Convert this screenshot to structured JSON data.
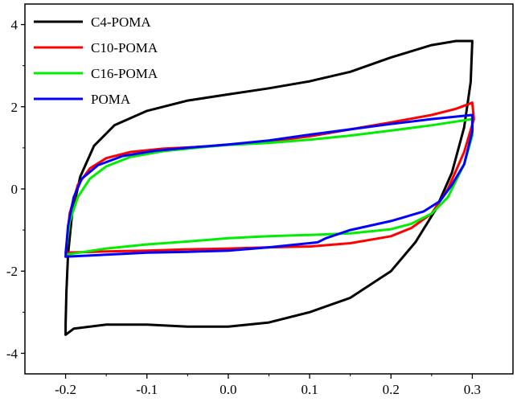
{
  "chart_data": {
    "type": "line",
    "title": "",
    "xlabel": "",
    "ylabel": "",
    "xlim": [
      -0.25,
      0.35
    ],
    "ylim": [
      -4.5,
      4.5
    ],
    "xticks": [
      -0.2,
      -0.1,
      0.0,
      0.1,
      0.2,
      0.3
    ],
    "xtick_labels": [
      "-0.2",
      "-0.1",
      "0.0",
      "0.1",
      "0.2",
      "0.3"
    ],
    "yticks": [
      -4,
      -2,
      0,
      2,
      4
    ],
    "ytick_labels": [
      "-4",
      "-2",
      "0",
      "2",
      "4"
    ],
    "legend_position": "top-left",
    "grid": false,
    "series": [
      {
        "name": "C4-POMA",
        "color": "#000000",
        "points": [
          [
            -0.2,
            -3.55
          ],
          [
            -0.2,
            -3.3
          ],
          [
            -0.199,
            -2.5
          ],
          [
            -0.197,
            -1.6
          ],
          [
            -0.192,
            -0.6
          ],
          [
            -0.182,
            0.3
          ],
          [
            -0.165,
            1.05
          ],
          [
            -0.14,
            1.55
          ],
          [
            -0.1,
            1.9
          ],
          [
            -0.05,
            2.15
          ],
          [
            0.0,
            2.3
          ],
          [
            0.05,
            2.45
          ],
          [
            0.1,
            2.62
          ],
          [
            0.15,
            2.85
          ],
          [
            0.2,
            3.2
          ],
          [
            0.25,
            3.5
          ],
          [
            0.28,
            3.6
          ],
          [
            0.3,
            3.6
          ],
          [
            0.298,
            2.6
          ],
          [
            0.29,
            1.5
          ],
          [
            0.275,
            0.4
          ],
          [
            0.255,
            -0.5
          ],
          [
            0.23,
            -1.3
          ],
          [
            0.2,
            -2.0
          ],
          [
            0.15,
            -2.65
          ],
          [
            0.1,
            -3.0
          ],
          [
            0.05,
            -3.25
          ],
          [
            0.0,
            -3.35
          ],
          [
            -0.05,
            -3.35
          ],
          [
            -0.1,
            -3.3
          ],
          [
            -0.15,
            -3.3
          ],
          [
            -0.19,
            -3.4
          ],
          [
            -0.2,
            -3.55
          ]
        ]
      },
      {
        "name": "C10-POMA",
        "color": "#ff0000",
        "points": [
          [
            -0.2,
            -1.55
          ],
          [
            -0.195,
            -0.6
          ],
          [
            -0.185,
            0.1
          ],
          [
            -0.17,
            0.5
          ],
          [
            -0.15,
            0.75
          ],
          [
            -0.12,
            0.9
          ],
          [
            -0.08,
            0.98
          ],
          [
            -0.03,
            1.03
          ],
          [
            0.0,
            1.08
          ],
          [
            0.05,
            1.15
          ],
          [
            0.1,
            1.28
          ],
          [
            0.15,
            1.45
          ],
          [
            0.2,
            1.62
          ],
          [
            0.25,
            1.8
          ],
          [
            0.28,
            1.95
          ],
          [
            0.3,
            2.1
          ],
          [
            0.302,
            1.7
          ],
          [
            0.29,
            0.9
          ],
          [
            0.27,
            0.0
          ],
          [
            0.25,
            -0.6
          ],
          [
            0.225,
            -0.95
          ],
          [
            0.2,
            -1.15
          ],
          [
            0.15,
            -1.32
          ],
          [
            0.1,
            -1.4
          ],
          [
            0.05,
            -1.42
          ],
          [
            0.0,
            -1.45
          ],
          [
            -0.05,
            -1.47
          ],
          [
            -0.1,
            -1.5
          ],
          [
            -0.15,
            -1.52
          ],
          [
            -0.2,
            -1.55
          ]
        ]
      },
      {
        "name": "C16-POMA",
        "color": "#00ee00",
        "points": [
          [
            -0.2,
            -1.6
          ],
          [
            -0.195,
            -0.8
          ],
          [
            -0.185,
            -0.2
          ],
          [
            -0.17,
            0.25
          ],
          [
            -0.15,
            0.55
          ],
          [
            -0.12,
            0.78
          ],
          [
            -0.08,
            0.92
          ],
          [
            -0.03,
            1.02
          ],
          [
            0.0,
            1.07
          ],
          [
            0.05,
            1.12
          ],
          [
            0.1,
            1.2
          ],
          [
            0.15,
            1.3
          ],
          [
            0.2,
            1.42
          ],
          [
            0.25,
            1.55
          ],
          [
            0.3,
            1.7
          ],
          [
            0.3,
            1.3
          ],
          [
            0.29,
            0.6
          ],
          [
            0.27,
            -0.2
          ],
          [
            0.25,
            -0.6
          ],
          [
            0.225,
            -0.85
          ],
          [
            0.2,
            -0.98
          ],
          [
            0.15,
            -1.08
          ],
          [
            0.1,
            -1.12
          ],
          [
            0.05,
            -1.15
          ],
          [
            0.0,
            -1.2
          ],
          [
            -0.05,
            -1.28
          ],
          [
            -0.1,
            -1.35
          ],
          [
            -0.15,
            -1.45
          ],
          [
            -0.2,
            -1.6
          ]
        ]
      },
      {
        "name": "POMA",
        "color": "#0000ff",
        "points": [
          [
            -0.2,
            -1.65
          ],
          [
            -0.197,
            -0.9
          ],
          [
            -0.19,
            -0.2
          ],
          [
            -0.18,
            0.25
          ],
          [
            -0.16,
            0.58
          ],
          [
            -0.13,
            0.8
          ],
          [
            -0.09,
            0.93
          ],
          [
            -0.04,
            1.02
          ],
          [
            0.0,
            1.08
          ],
          [
            0.05,
            1.18
          ],
          [
            0.1,
            1.32
          ],
          [
            0.15,
            1.45
          ],
          [
            0.2,
            1.58
          ],
          [
            0.25,
            1.7
          ],
          [
            0.3,
            1.8
          ],
          [
            0.3,
            1.4
          ],
          [
            0.29,
            0.6
          ],
          [
            0.275,
            0.1
          ],
          [
            0.26,
            -0.3
          ],
          [
            0.24,
            -0.55
          ],
          [
            0.2,
            -0.78
          ],
          [
            0.15,
            -1.0
          ],
          [
            0.12,
            -1.2
          ],
          [
            0.11,
            -1.3
          ],
          [
            0.05,
            -1.42
          ],
          [
            0.0,
            -1.5
          ],
          [
            -0.05,
            -1.53
          ],
          [
            -0.1,
            -1.55
          ],
          [
            -0.15,
            -1.6
          ],
          [
            -0.2,
            -1.65
          ]
        ]
      }
    ]
  }
}
